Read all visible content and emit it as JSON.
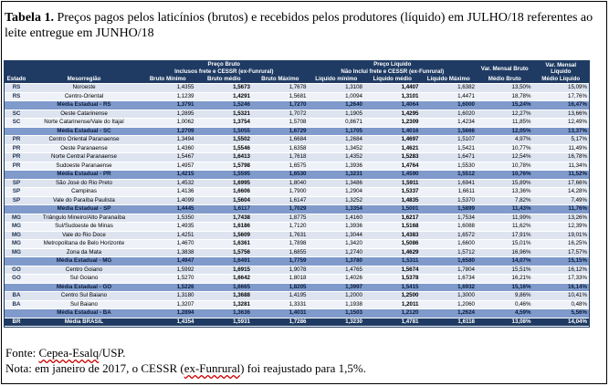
{
  "title": {
    "bold": "Tabela 1.",
    "text": " Preços pagos pelos laticínios (brutos) e recebidos pelos produtores (líquido) em JULHO/18 referentes ao leite entregue em JUNHO/18"
  },
  "header": {
    "preco_bruto": "Preço Bruto",
    "preco_bruto_sub": "Inclusos frete e CESSR (ex-Funrural)",
    "preco_liquido": "Preço Líquido",
    "preco_liquido_sub": "Não Inclui frete e CESSR (ex-Funrural)",
    "var_bruto": "Var. Mensal Bruto",
    "var_liquido": "Var. Mensal Líquido",
    "cols": [
      "Estado",
      "Mesorregião",
      "Bruto Mínimo",
      "Bruto médio",
      "Bruto Máximo",
      "Líquido mínimo",
      "Líquido médio",
      "Líquido Máximo",
      "Médio Bruto",
      "Médio Líquido"
    ]
  },
  "rows": [
    {
      "type": "row",
      "estado": "RS",
      "meso": "Noroeste",
      "v": [
        "1,4355",
        "1,5673",
        "1,7678",
        "1,3108",
        "1,4407",
        "1,6382",
        "13,50%",
        "15,09%"
      ]
    },
    {
      "type": "row",
      "estado": "RS",
      "meso": "Centro-Oriental",
      "v": [
        "1,1239",
        "1,4291",
        "1,5681",
        "1,0094",
        "1,3101",
        "1,4471",
        "18,78%",
        "17,76%"
      ]
    },
    {
      "type": "avg",
      "estado": "",
      "meso": "Média Estadual - RS",
      "v": [
        "1,3791",
        "1,5246",
        "1,7270",
        "1,2640",
        "1,4064",
        "1,6000",
        "15,24%",
        "16,47%"
      ]
    },
    {
      "type": "row",
      "estado": "SC",
      "meso": "Oeste Catarinense",
      "v": [
        "1,2895",
        "1,5321",
        "1,7072",
        "1,1905",
        "1,4295",
        "1,6020",
        "12,27%",
        "13,66%"
      ]
    },
    {
      "type": "row",
      "estado": "SC",
      "meso": "Norte Catarinense/Vale do Itajaí",
      "v": [
        "1,0062",
        "1,3754",
        "1,5708",
        "0,8671",
        "1,2309",
        "1,4234",
        "11,85%",
        "12,49%"
      ]
    },
    {
      "type": "avg",
      "estado": "",
      "meso": "Média Estadual - SC",
      "v": [
        "1,2709",
        "1,5055",
        "1,6729",
        "1,1705",
        "1,4016",
        "1,5666",
        "12,05%",
        "13,37%"
      ]
    },
    {
      "type": "row",
      "estado": "PR",
      "meso": "Centro Oriental Paranaense",
      "v": [
        "1,3494",
        "1,5502",
        "1,6684",
        "1,2684",
        "1,4697",
        "1,5107",
        "4,97%",
        "5,17%"
      ]
    },
    {
      "type": "row",
      "estado": "PR",
      "meso": "Oeste Paranaense",
      "v": [
        "1,4360",
        "1,5546",
        "1,6358",
        "1,3452",
        "1,4621",
        "1,5421",
        "10,77%",
        "11,49%"
      ]
    },
    {
      "type": "row",
      "estado": "PR",
      "meso": "Norte Central Paranaense",
      "v": [
        "1,5467",
        "1,6413",
        "1,7618",
        "1,4352",
        "1,5283",
        "1,6471",
        "12,54%",
        "16,78%"
      ]
    },
    {
      "type": "row",
      "estado": "PR",
      "meso": "Sudoeste Paranaense",
      "v": [
        "1,4957",
        "1,5798",
        "1,6575",
        "1,3936",
        "1,4764",
        "1,5530",
        "10,78%",
        "11,34%"
      ]
    },
    {
      "type": "avg",
      "estado": "",
      "meso": "Média Estadual - PR",
      "v": [
        "1,4215",
        "1,5595",
        "1,6530",
        "1,3231",
        "1,4590",
        "1,5512",
        "10,76%",
        "11,52%"
      ]
    },
    {
      "type": "row",
      "estado": "SP",
      "meso": "São José do Rio Preto",
      "v": [
        "1,4532",
        "1,6995",
        "1,8040",
        "1,3486",
        "1,5911",
        "1,6941",
        "15,89%",
        "17,66%"
      ]
    },
    {
      "type": "row",
      "estado": "SP",
      "meso": "Campinas",
      "v": [
        "1,4136",
        "1,6606",
        "1,7900",
        "1,2904",
        "1,5337",
        "1,6611",
        "13,36%",
        "14,28%"
      ]
    },
    {
      "type": "row",
      "estado": "SP",
      "meso": "Vale do Paraíba Paulista",
      "v": [
        "1,4099",
        "1,5604",
        "1,6147",
        "1,3252",
        "1,4835",
        "1,5370",
        "7,82%",
        "7,49%"
      ]
    },
    {
      "type": "avg",
      "estado": "",
      "meso": "Média Estadual - SP",
      "v": [
        "1,4445",
        "1,6117",
        "1,7029",
        "1,3354",
        "1,5001",
        "1,5899",
        "11,43%",
        "11,76%"
      ]
    },
    {
      "type": "row",
      "estado": "MG",
      "meso": "Triângulo Mineiro/Alto Paranaíba",
      "v": [
        "1,5350",
        "1,7438",
        "1,8775",
        "1,4160",
        "1,6217",
        "1,7534",
        "11,99%",
        "13,26%"
      ]
    },
    {
      "type": "row",
      "estado": "MG",
      "meso": "Sul/Sudoeste de Minas",
      "v": [
        "1,4935",
        "1,6186",
        "1,7120",
        "1,3936",
        "1,5168",
        "1,6088",
        "11,62%",
        "12,39%"
      ]
    },
    {
      "type": "row",
      "estado": "MG",
      "meso": "Vale do Rio Doce",
      "v": [
        "1,4251",
        "1,5609",
        "1,7631",
        "1,3044",
        "1,4383",
        "1,6572",
        "17,91%",
        "19,01%"
      ]
    },
    {
      "type": "row",
      "estado": "MG",
      "meso": "Metropolitana de Belo Horizonte",
      "v": [
        "1,4670",
        "1,6361",
        "1,7898",
        "1,3420",
        "1,5086",
        "1,6600",
        "15,01%",
        "16,25%"
      ]
    },
    {
      "type": "row",
      "estado": "MG",
      "meso": "Zona da Mata",
      "v": [
        "1,3838",
        "1,5756",
        "1,6855",
        "1,2740",
        "1,4629",
        "1,5712",
        "16,96%",
        "17,57%"
      ]
    },
    {
      "type": "avg",
      "estado": "",
      "meso": "Média Estadual - MG",
      "v": [
        "1,4947",
        "1,6491",
        "1,7759",
        "1,3780",
        "1,5311",
        "1,6580",
        "14,07%",
        "15,15%"
      ]
    },
    {
      "type": "row",
      "estado": "GO",
      "meso": "Centro Goiano",
      "v": [
        "1,5992",
        "1,6915",
        "1,9078",
        "1,4765",
        "1,5674",
        "1,7804",
        "15,51%",
        "16,12%"
      ]
    },
    {
      "type": "row",
      "estado": "GO",
      "meso": "Sul Goiano",
      "v": [
        "1,5270",
        "1,6642",
        "1,8018",
        "1,4026",
        "1,5378",
        "1,6734",
        "16,21%",
        "17,33%"
      ]
    },
    {
      "type": "avg",
      "estado": "",
      "meso": "Média Estadual - GO",
      "v": [
        "1,5226",
        "1,6665",
        "1,8205",
        "1,3997",
        "1,5415",
        "1,6932",
        "15,16%",
        "16,14%"
      ]
    },
    {
      "type": "row",
      "estado": "BA",
      "meso": "Centro Sul Baiano",
      "v": [
        "1,3180",
        "1,3688",
        "1,4195",
        "1,2000",
        "1,2500",
        "1,3000",
        "9,86%",
        "10,41%"
      ]
    },
    {
      "type": "row",
      "estado": "BA",
      "meso": "Sul Baiano",
      "v": [
        "1,3207",
        "1,3281",
        "1,3331",
        "1,1938",
        "1,2011",
        "1,2060",
        "0,46%",
        "0,48%"
      ]
    },
    {
      "type": "avg",
      "estado": "",
      "meso": "Média Estadual - BA",
      "v": [
        "1,2894",
        "1,3636",
        "1,4031",
        "1,1503",
        "1,2120",
        "1,2624",
        "4,59%",
        "5,56%"
      ]
    },
    {
      "type": "total",
      "estado": "BR",
      "meso": "Média BRASIL",
      "v": [
        "1,4354",
        "1,5931",
        "1,7286",
        "1,3230",
        "1,4781",
        "1,6118",
        "13,08%",
        "14,04%"
      ]
    }
  ],
  "footer": {
    "fonte_pre": "Fonte: ",
    "fonte_link": "Cepea-Esalq",
    "fonte_post": "/USP.",
    "nota_pre": "Nota: em janeiro de 2017, o CESSR (",
    "nota_link": "ex-Funrural",
    "nota_post": ") foi reajustado para 1,5%."
  }
}
